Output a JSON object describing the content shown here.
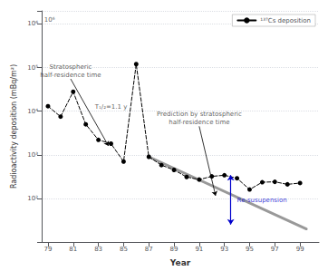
{
  "chart_data": {
    "type": "line",
    "xlabel": "Year",
    "ylabel": "Radioactivity deposition (mBq/m²)",
    "log": "y",
    "grid": "y",
    "legend": "upper right",
    "xlim": [
      78.5,
      100.5
    ],
    "xticks": [
      79,
      81,
      83,
      85,
      87,
      89,
      91,
      93,
      95,
      97,
      99
    ],
    "ylim": [
      10,
      2000000
    ],
    "yticks": [
      {
        "value": 100,
        "label": "10²"
      },
      {
        "value": 1000,
        "label": "10³"
      },
      {
        "value": 10000,
        "label": "10⁴"
      },
      {
        "value": 100000,
        "label": "10⁵"
      },
      {
        "value": 1000000,
        "label": "10⁶"
      }
    ],
    "series": [
      {
        "name": "¹³⁷Cs deposition",
        "color": "black",
        "line_style": "dashed",
        "marker": "circle",
        "x": [
          79,
          80,
          81,
          82,
          83,
          84,
          85,
          86,
          87,
          88,
          89,
          90,
          91,
          92,
          93,
          94,
          95,
          96,
          97,
          98,
          99
        ],
        "values": [
          13000,
          7500,
          28000,
          5000,
          2200,
          1800,
          700,
          120000,
          900,
          580,
          450,
          310,
          270,
          320,
          340,
          290,
          160,
          235,
          240,
          210,
          225
        ]
      },
      {
        "color": "#999999",
        "line_style": "solid",
        "x": [
          87.0,
          99.5
        ],
        "values": [
          900,
          20
        ]
      }
    ],
    "annotations": [
      {
        "text": "Stratospheric\nhalf-residence time",
        "x": 80.8,
        "y": 55000,
        "arrow_to": [
          83.8,
          1600
        ]
      },
      {
        "text": "T₁/₂=1.1 y",
        "x": 84.0,
        "y": 11000
      },
      {
        "text": "Prediction by stratospheric\nhalf-residence time",
        "x": 91.0,
        "y": 4500,
        "arrow_to": [
          92.3,
          115
        ]
      },
      {
        "text": "Re-susupension",
        "x": 94.0,
        "y": 90,
        "color": "#0000cc",
        "arrow": {
          "x": 93.5,
          "from": 340,
          "to": 25
        }
      },
      {
        "text": "10⁶",
        "x": 78.7,
        "y": 1250000
      }
    ]
  }
}
